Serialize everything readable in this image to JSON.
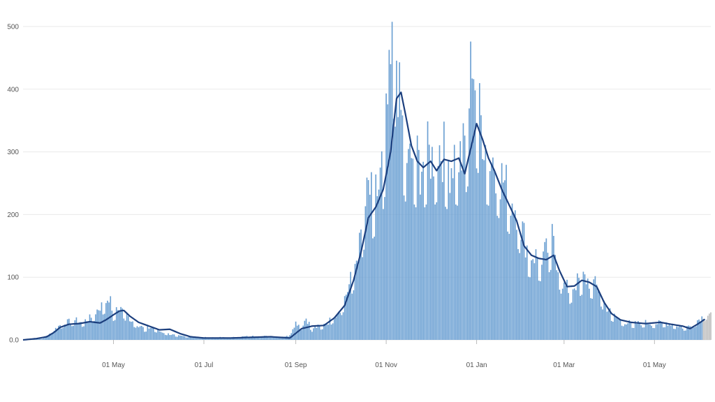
{
  "colors": {
    "bar": "#6a9fd2",
    "bar_edge": "#4a82b9",
    "provisional_bar": "#bdbdbd",
    "average_line": "#1c3f7e",
    "grid": "#eaeaea",
    "tick_text": "#555555"
  },
  "chart_data": {
    "type": "bar",
    "title": "",
    "xlabel": "",
    "ylabel": "",
    "ylim": [
      0,
      520
    ],
    "grid": "horizontal",
    "legend": "none",
    "x_ticks": [
      {
        "date": "2020-05-01",
        "label": "01 May"
      },
      {
        "date": "2020-07-01",
        "label": "01 Jul"
      },
      {
        "date": "2020-09-01",
        "label": "01 Sep"
      },
      {
        "date": "2020-11-01",
        "label": "01 Nov"
      },
      {
        "date": "2021-01-01",
        "label": "01 Jan"
      },
      {
        "date": "2021-03-01",
        "label": "01 Mar"
      },
      {
        "date": "2021-05-01",
        "label": "01 May"
      }
    ],
    "y_ticks": [
      "0.0",
      "100",
      "200",
      "300",
      "400",
      "500"
    ],
    "x_range": [
      "2020-03-01",
      "2021-06-08"
    ],
    "series": [
      {
        "kind": "bar",
        "description": "daily values (approximate, read from chart)",
        "points": [
          [
            "2020-03-01",
            0
          ],
          [
            "2020-03-08",
            1
          ],
          [
            "2020-03-15",
            3
          ],
          [
            "2020-03-18",
            8
          ],
          [
            "2020-03-22",
            16
          ],
          [
            "2020-03-25",
            22
          ],
          [
            "2020-03-28",
            27
          ],
          [
            "2020-04-01",
            29
          ],
          [
            "2020-04-05",
            32
          ],
          [
            "2020-04-09",
            28
          ],
          [
            "2020-04-12",
            31
          ],
          [
            "2020-04-16",
            36
          ],
          [
            "2020-04-19",
            45
          ],
          [
            "2020-04-22",
            53
          ],
          [
            "2020-04-25",
            58
          ],
          [
            "2020-04-28",
            70
          ],
          [
            "2020-05-01",
            42
          ],
          [
            "2020-05-04",
            48
          ],
          [
            "2020-05-07",
            52
          ],
          [
            "2020-05-10",
            38
          ],
          [
            "2020-05-14",
            30
          ],
          [
            "2020-05-18",
            24
          ],
          [
            "2020-05-22",
            18
          ],
          [
            "2020-05-27",
            20
          ],
          [
            "2020-06-01",
            14
          ],
          [
            "2020-06-08",
            9
          ],
          [
            "2020-06-15",
            6
          ],
          [
            "2020-06-22",
            5
          ],
          [
            "2020-07-01",
            4
          ],
          [
            "2020-07-10",
            4
          ],
          [
            "2020-07-20",
            4
          ],
          [
            "2020-08-01",
            6
          ],
          [
            "2020-08-10",
            6
          ],
          [
            "2020-08-20",
            5
          ],
          [
            "2020-08-27",
            6
          ],
          [
            "2020-09-01",
            28
          ],
          [
            "2020-09-05",
            22
          ],
          [
            "2020-09-08",
            35
          ],
          [
            "2020-09-12",
            18
          ],
          [
            "2020-09-17",
            22
          ],
          [
            "2020-09-22",
            26
          ],
          [
            "2020-09-28",
            42
          ],
          [
            "2020-10-02",
            55
          ],
          [
            "2020-10-06",
            80
          ],
          [
            "2020-10-10",
            110
          ],
          [
            "2020-10-14",
            150
          ],
          [
            "2020-10-17",
            200
          ],
          [
            "2020-10-20",
            240
          ],
          [
            "2020-10-23",
            225
          ],
          [
            "2020-10-27",
            240
          ],
          [
            "2020-10-30",
            290
          ],
          [
            "2020-11-02",
            370
          ],
          [
            "2020-11-04",
            420
          ],
          [
            "2020-11-06",
            490
          ],
          [
            "2020-11-08",
            455
          ],
          [
            "2020-11-10",
            380
          ],
          [
            "2020-11-13",
            320
          ],
          [
            "2020-11-16",
            280
          ],
          [
            "2020-11-20",
            300
          ],
          [
            "2020-11-24",
            275
          ],
          [
            "2020-11-28",
            300
          ],
          [
            "2020-12-02",
            290
          ],
          [
            "2020-12-06",
            310
          ],
          [
            "2020-12-10",
            300
          ],
          [
            "2020-12-14",
            280
          ],
          [
            "2020-12-18",
            300
          ],
          [
            "2020-12-22",
            290
          ],
          [
            "2020-12-26",
            340
          ],
          [
            "2020-12-29",
            470
          ],
          [
            "2021-01-01",
            380
          ],
          [
            "2021-01-04",
            350
          ],
          [
            "2021-01-08",
            300
          ],
          [
            "2021-01-12",
            290
          ],
          [
            "2021-01-16",
            270
          ],
          [
            "2021-01-20",
            250
          ],
          [
            "2021-01-24",
            230
          ],
          [
            "2021-01-28",
            210
          ],
          [
            "2021-02-01",
            175
          ],
          [
            "2021-02-05",
            140
          ],
          [
            "2021-02-09",
            135
          ],
          [
            "2021-02-13",
            130
          ],
          [
            "2021-02-17",
            140
          ],
          [
            "2021-02-21",
            160
          ],
          [
            "2021-02-25",
            120
          ],
          [
            "2021-03-01",
            85
          ],
          [
            "2021-03-05",
            80
          ],
          [
            "2021-03-09",
            90
          ],
          [
            "2021-03-13",
            100
          ],
          [
            "2021-03-17",
            95
          ],
          [
            "2021-03-21",
            90
          ],
          [
            "2021-03-25",
            80
          ],
          [
            "2021-03-29",
            55
          ],
          [
            "2021-04-02",
            42
          ],
          [
            "2021-04-06",
            35
          ],
          [
            "2021-04-12",
            28
          ],
          [
            "2021-04-18",
            26
          ],
          [
            "2021-04-25",
            28
          ],
          [
            "2021-05-01",
            26
          ],
          [
            "2021-05-08",
            28
          ],
          [
            "2021-05-15",
            24
          ],
          [
            "2021-05-20",
            20
          ],
          [
            "2021-05-25",
            22
          ],
          [
            "2021-05-29",
            30
          ],
          [
            "2021-06-02",
            36
          ],
          [
            "2021-06-05",
            45
          ]
        ],
        "provisional_from": "2021-06-03"
      },
      {
        "kind": "line",
        "description": "rolling average (approximate)",
        "points": [
          [
            "2020-03-01",
            0
          ],
          [
            "2020-03-10",
            2
          ],
          [
            "2020-03-17",
            5
          ],
          [
            "2020-03-22",
            12
          ],
          [
            "2020-03-26",
            20
          ],
          [
            "2020-04-01",
            25
          ],
          [
            "2020-04-08",
            26
          ],
          [
            "2020-04-15",
            29
          ],
          [
            "2020-04-22",
            27
          ],
          [
            "2020-04-26",
            32
          ],
          [
            "2020-05-01",
            40
          ],
          [
            "2020-05-05",
            46
          ],
          [
            "2020-05-08",
            47
          ],
          [
            "2020-05-12",
            38
          ],
          [
            "2020-05-18",
            28
          ],
          [
            "2020-05-25",
            22
          ],
          [
            "2020-06-01",
            16
          ],
          [
            "2020-06-08",
            17
          ],
          [
            "2020-06-15",
            10
          ],
          [
            "2020-06-22",
            5
          ],
          [
            "2020-07-01",
            3
          ],
          [
            "2020-07-20",
            3
          ],
          [
            "2020-08-01",
            4
          ],
          [
            "2020-08-15",
            5
          ],
          [
            "2020-08-28",
            3
          ],
          [
            "2020-09-05",
            18
          ],
          [
            "2020-09-12",
            22
          ],
          [
            "2020-09-20",
            23
          ],
          [
            "2020-09-27",
            35
          ],
          [
            "2020-10-04",
            55
          ],
          [
            "2020-10-10",
            95
          ],
          [
            "2020-10-15",
            140
          ],
          [
            "2020-10-20",
            195
          ],
          [
            "2020-10-25",
            212
          ],
          [
            "2020-10-30",
            240
          ],
          [
            "2020-11-04",
            300
          ],
          [
            "2020-11-08",
            385
          ],
          [
            "2020-11-11",
            395
          ],
          [
            "2020-11-14",
            360
          ],
          [
            "2020-11-18",
            310
          ],
          [
            "2020-11-22",
            285
          ],
          [
            "2020-11-26",
            275
          ],
          [
            "2020-12-01",
            285
          ],
          [
            "2020-12-05",
            270
          ],
          [
            "2020-12-10",
            288
          ],
          [
            "2020-12-15",
            285
          ],
          [
            "2020-12-20",
            290
          ],
          [
            "2020-12-24",
            265
          ],
          [
            "2020-12-28",
            305
          ],
          [
            "2021-01-01",
            345
          ],
          [
            "2021-01-05",
            320
          ],
          [
            "2021-01-09",
            290
          ],
          [
            "2021-01-13",
            270
          ],
          [
            "2021-01-18",
            240
          ],
          [
            "2021-01-23",
            215
          ],
          [
            "2021-01-28",
            190
          ],
          [
            "2021-02-02",
            150
          ],
          [
            "2021-02-07",
            135
          ],
          [
            "2021-02-12",
            130
          ],
          [
            "2021-02-17",
            128
          ],
          [
            "2021-02-22",
            135
          ],
          [
            "2021-02-26",
            110
          ],
          [
            "2021-03-03",
            85
          ],
          [
            "2021-03-08",
            86
          ],
          [
            "2021-03-13",
            95
          ],
          [
            "2021-03-18",
            92
          ],
          [
            "2021-03-23",
            85
          ],
          [
            "2021-03-28",
            60
          ],
          [
            "2021-04-02",
            42
          ],
          [
            "2021-04-08",
            32
          ],
          [
            "2021-04-15",
            28
          ],
          [
            "2021-04-25",
            26
          ],
          [
            "2021-05-05",
            28
          ],
          [
            "2021-05-12",
            25
          ],
          [
            "2021-05-20",
            22
          ],
          [
            "2021-05-25",
            18
          ],
          [
            "2021-05-30",
            25
          ],
          [
            "2021-06-04",
            33
          ]
        ]
      }
    ]
  }
}
